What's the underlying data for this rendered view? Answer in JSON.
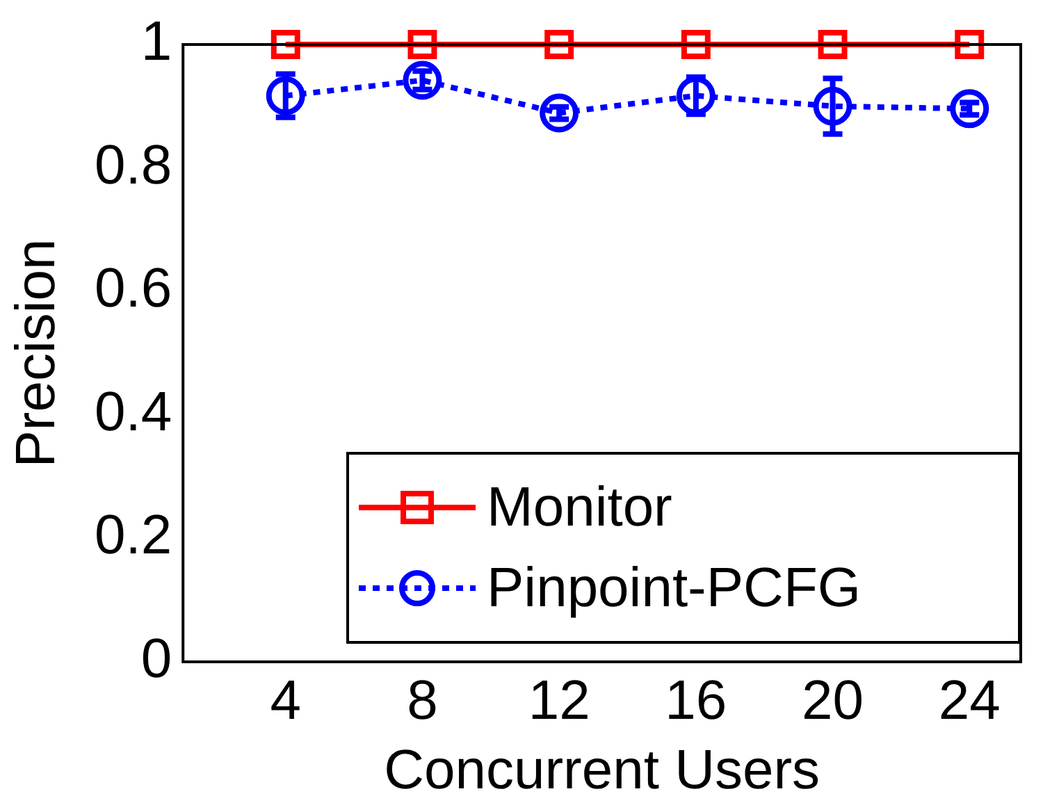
{
  "chart_data": {
    "type": "line",
    "xlabel": "Concurrent Users",
    "ylabel": "Precision",
    "x": [
      4,
      8,
      12,
      16,
      20,
      24
    ],
    "xlim": [
      1,
      25.5
    ],
    "xticks": [
      4,
      8,
      12,
      16,
      20,
      24
    ],
    "ylim": [
      0,
      1
    ],
    "yticks": [
      0,
      0.2,
      0.4,
      0.6,
      0.8,
      1
    ],
    "grid": false,
    "legend": "bottom right",
    "series": [
      {
        "name": "Monitor",
        "color": "#ff0000",
        "marker": "square",
        "line_style": "solid",
        "values": [
          1,
          1,
          1,
          1,
          1,
          1
        ]
      },
      {
        "name": "Pinpoint-PCFG",
        "color": "#0000ff",
        "marker": "circle",
        "line_style": "dotted",
        "values": [
          0.917,
          0.942,
          0.889,
          0.917,
          0.9,
          0.896
        ],
        "errors": [
          0.035,
          0.015,
          0.01,
          0.03,
          0.045,
          0.01
        ]
      }
    ]
  }
}
